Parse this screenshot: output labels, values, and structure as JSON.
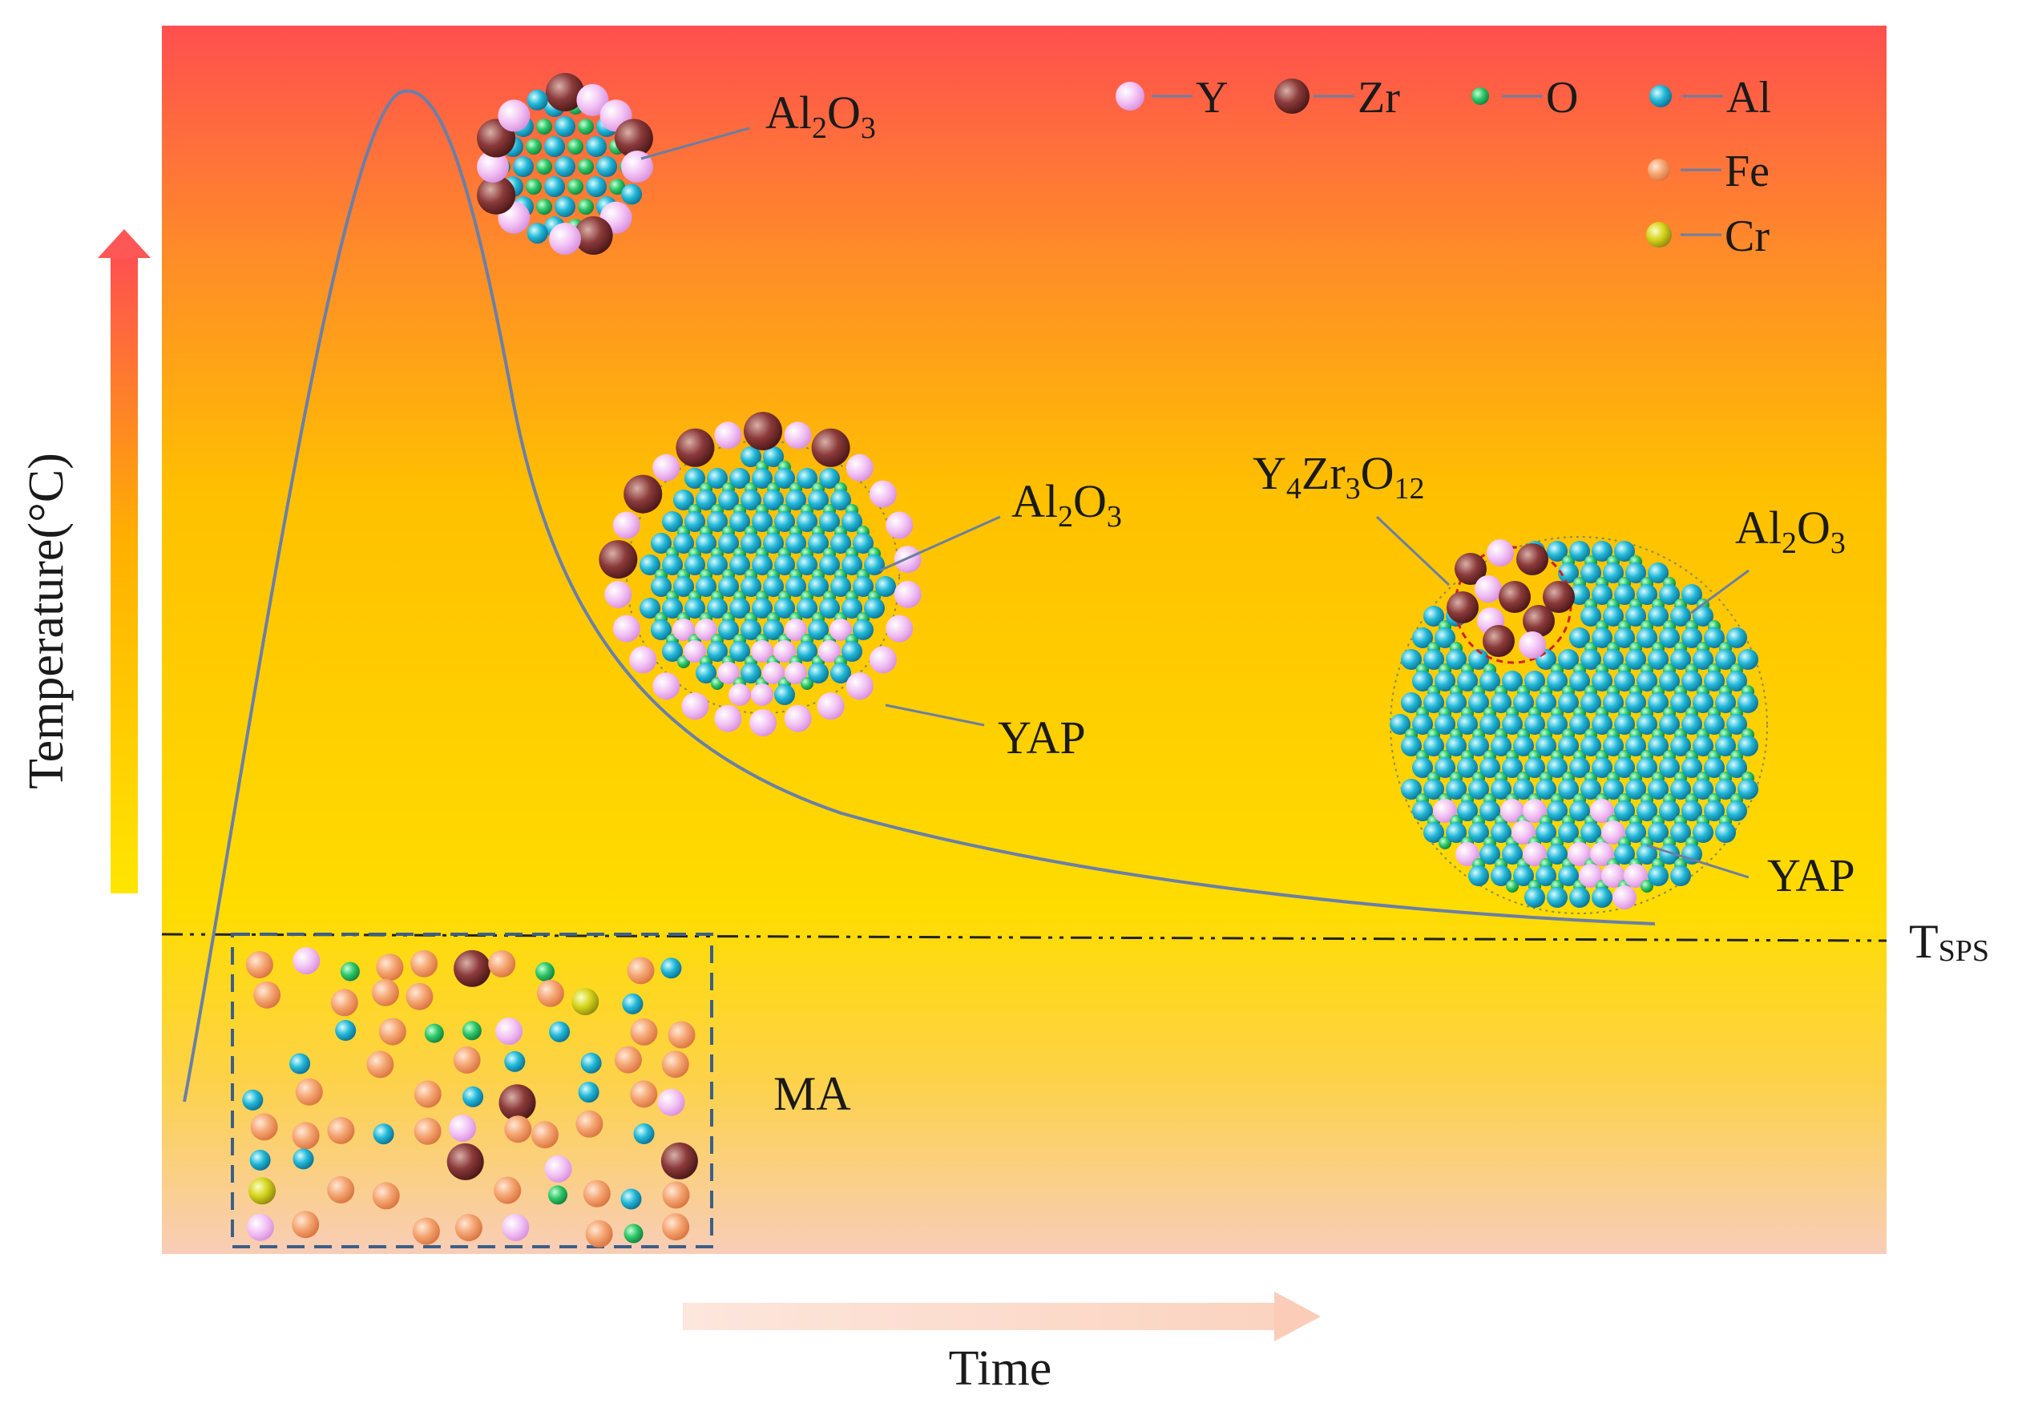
{
  "axes": {
    "y_label": "Temperature(°C)",
    "x_label": "Time"
  },
  "threshold": {
    "main": "T",
    "sub": "SPS"
  },
  "legend": [
    {
      "element": "Y",
      "color": "#f0b8f0"
    },
    {
      "element": "Zr",
      "color": "#8a3a3a"
    },
    {
      "element": "O",
      "color": "#2ecc71"
    },
    {
      "element": "Al",
      "color": "#22b8d8"
    },
    {
      "element": "Fe",
      "color": "#f4a070"
    },
    {
      "element": "Cr",
      "color": "#d8d820"
    }
  ],
  "stages": {
    "stage1": {
      "al2o3": [
        "Al",
        "2",
        "O",
        "3"
      ]
    },
    "stage2": {
      "al2o3": [
        "Al",
        "2",
        "O",
        "3"
      ],
      "yap": "YAP"
    },
    "stage3": {
      "y4zr3o12": [
        "Y",
        "4",
        "Zr",
        "3",
        "O",
        "12"
      ],
      "al2o3": [
        "Al",
        "2",
        "O",
        "3"
      ],
      "yap": "YAP"
    }
  },
  "ma_label": "MA",
  "colors": {
    "bg_top": "#ff5050",
    "bg_mid": "#ffb800",
    "bg_low": "#ffd900",
    "bg_bottom": "#f9c9b0",
    "curve": "#6a7fa8",
    "leader": "#6b7fa0",
    "dashed_box": "#3c5f88"
  }
}
